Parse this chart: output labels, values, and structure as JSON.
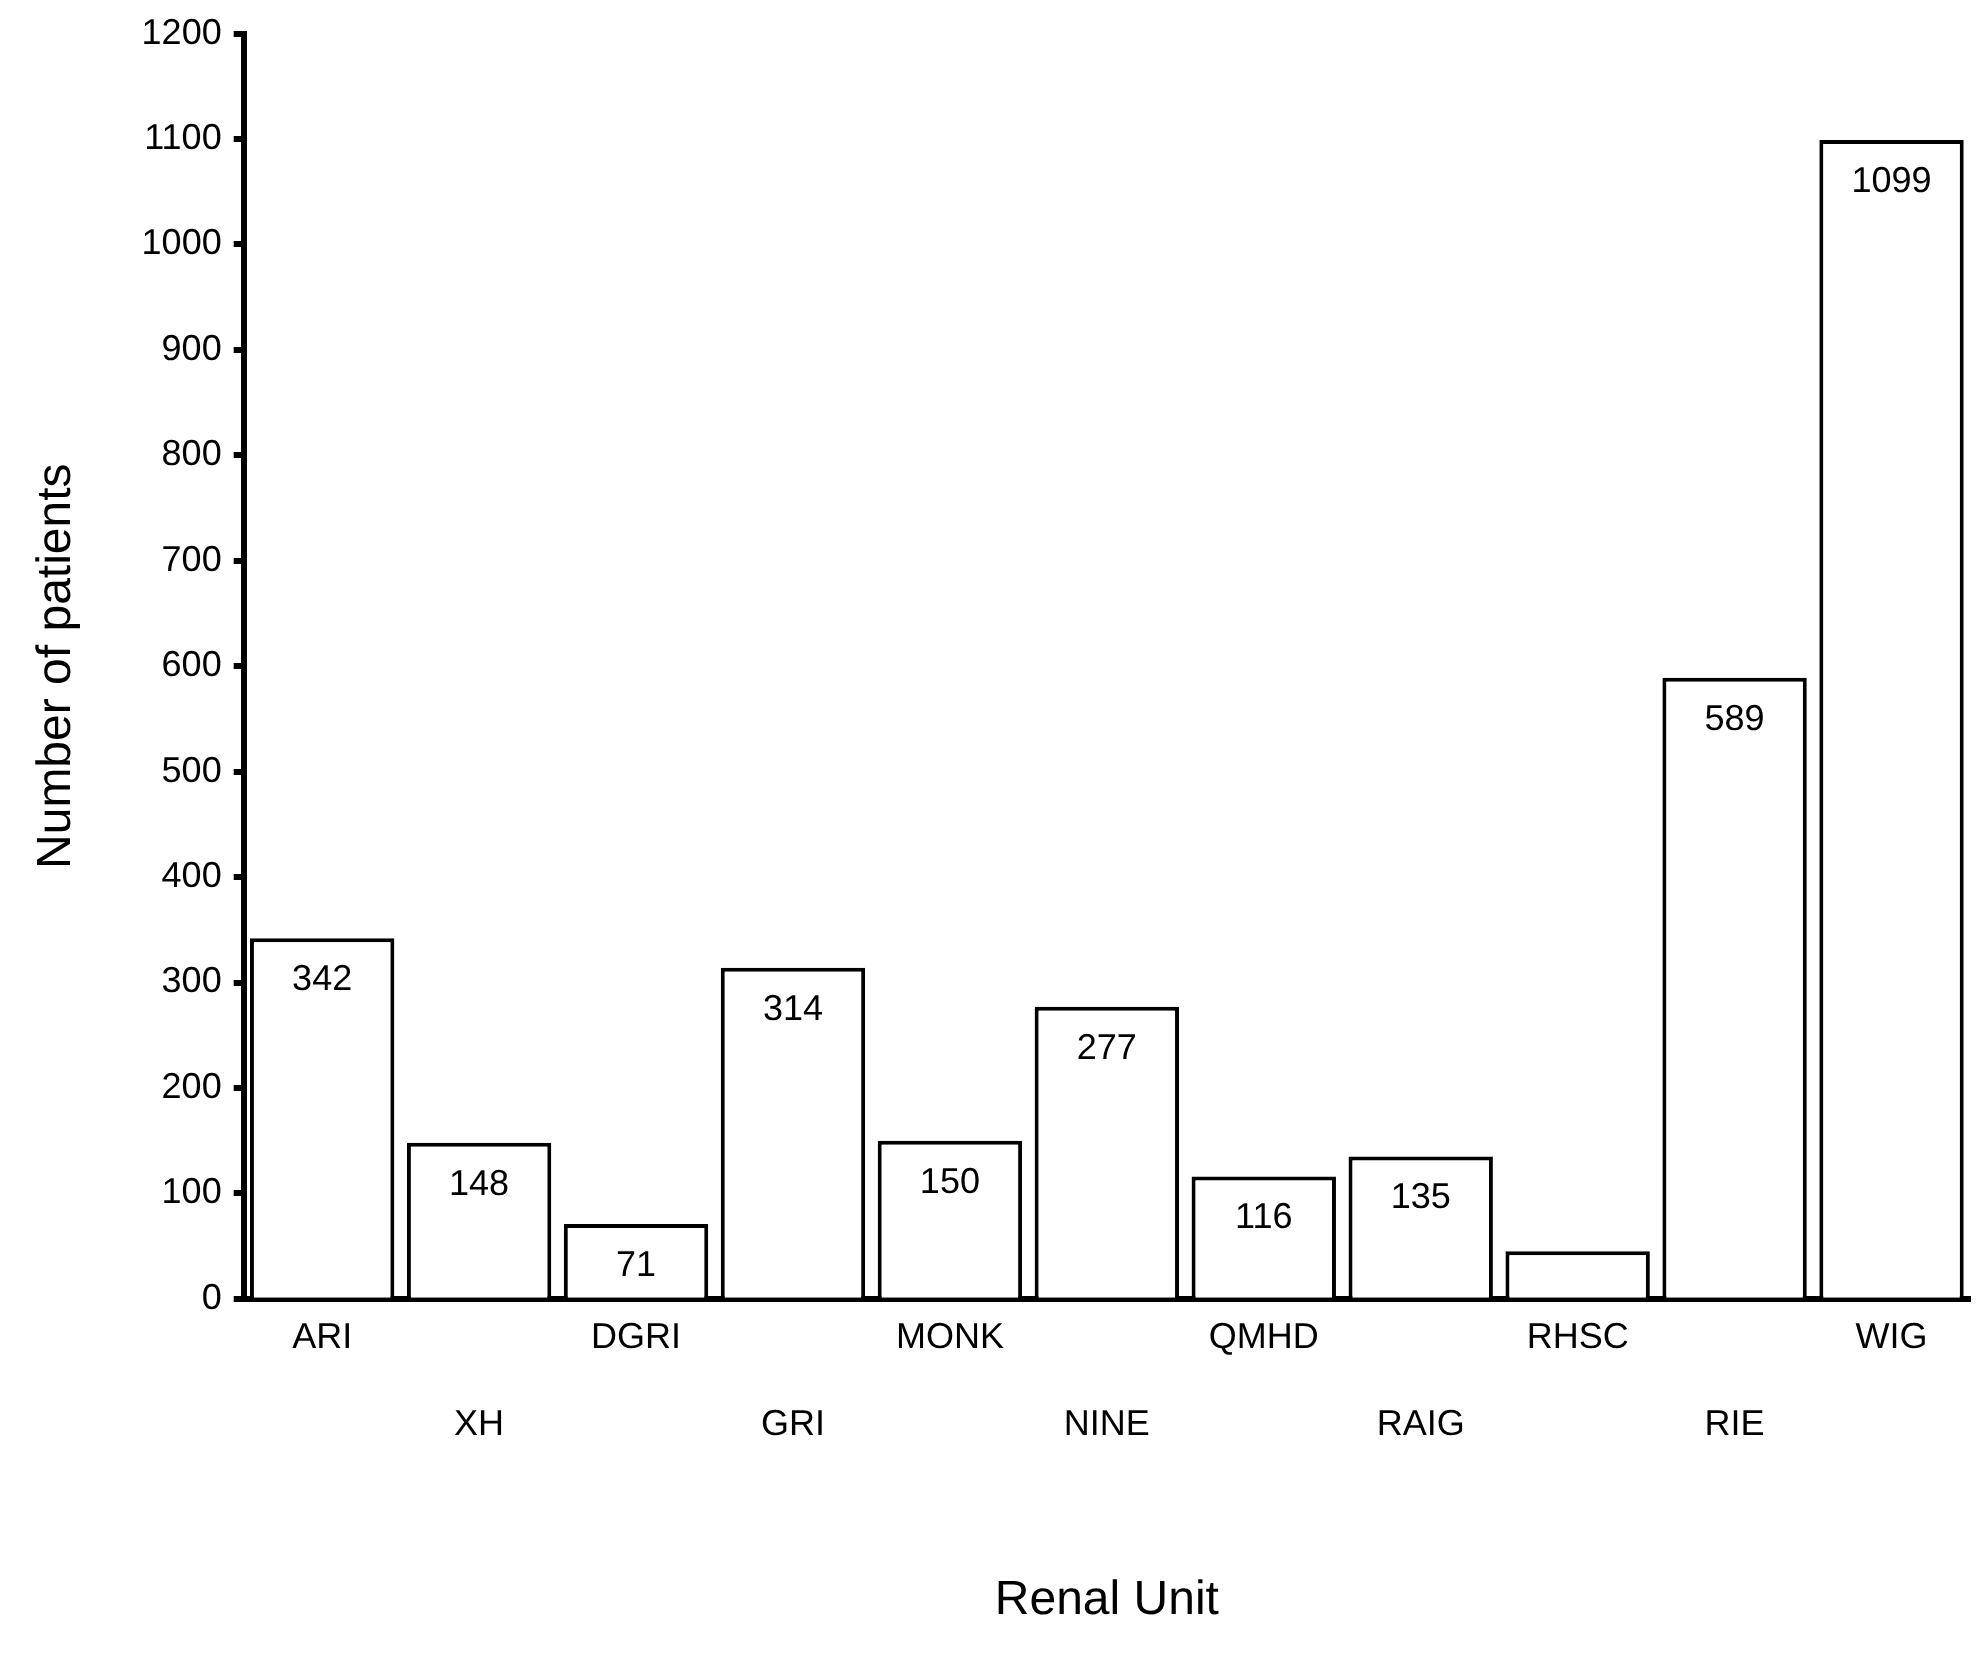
{
  "chart_data": {
    "type": "bar",
    "xlabel": "Renal Unit",
    "ylabel": "Number of patients",
    "categories": [
      "ARI",
      "XH",
      "DGRI",
      "GRI",
      "MONK",
      "NINE",
      "QMHD",
      "RAIG",
      "RHSC",
      "RIE",
      "WIG"
    ],
    "values": [
      342,
      148,
      71,
      314,
      150,
      277,
      116,
      135,
      45,
      589,
      1099
    ],
    "value_labels": [
      "342",
      "148",
      "71",
      "314",
      "150",
      "277",
      "116",
      "135",
      null,
      "589",
      "1099"
    ],
    "color": "#ffffff",
    "ylim": [
      0,
      1200
    ],
    "yticks": [
      0,
      100,
      200,
      300,
      400,
      500,
      600,
      700,
      800,
      900,
      1000,
      1100,
      1200
    ],
    "grid": false,
    "legend": false
  }
}
